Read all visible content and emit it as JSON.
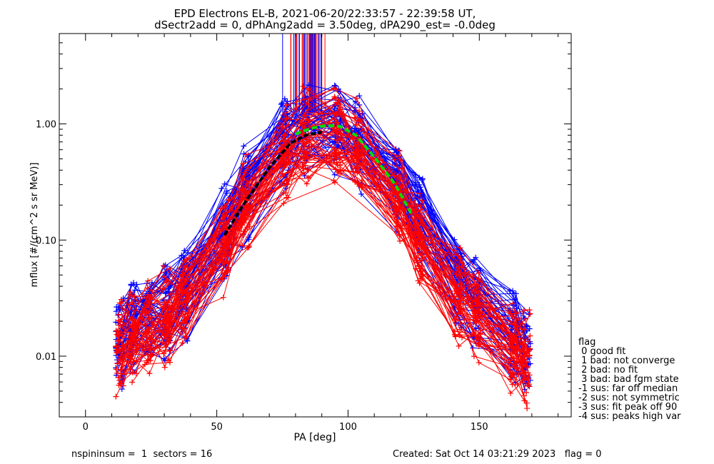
{
  "chart_data": {
    "type": "line",
    "title_line1": "EPD Electrons EL-B, 2021-06-20/22:33:57 - 22:39:58 UT,",
    "title_line2": "dSectr2add = 0, dPhAng2add = 3.50deg, dPA290_est=  -0.0deg",
    "xlabel": "PA [deg]",
    "ylabel": "mflux [#/(cm^2 s sr MeV)]",
    "xlim": [
      -10,
      185
    ],
    "ylim": [
      0.003,
      6.0
    ],
    "yscale": "log",
    "xticks": [
      0,
      50,
      100,
      150
    ],
    "xtick_labels": [
      "0",
      "50",
      "100",
      "150"
    ],
    "yticks": [
      0.01,
      0.1,
      1.0
    ],
    "ytick_labels": [
      "0.01",
      "0.10",
      "1.00"
    ],
    "pa_bins": [
      13,
      18,
      24,
      31,
      38,
      53,
      61,
      76,
      84,
      96,
      104,
      119,
      127,
      142,
      149,
      163,
      168
    ],
    "series": [
      {
        "name": "blue sweeps",
        "color": "#0000ff",
        "median": [
          0.012,
          0.016,
          0.02,
          0.025,
          0.035,
          0.11,
          0.25,
          0.72,
          0.85,
          0.92,
          0.68,
          0.3,
          0.15,
          0.04,
          0.028,
          0.014,
          0.01
        ]
      },
      {
        "name": "red sweeps",
        "color": "#ff0000",
        "median": [
          0.011,
          0.015,
          0.018,
          0.022,
          0.03,
          0.09,
          0.2,
          0.55,
          0.75,
          0.8,
          0.6,
          0.22,
          0.1,
          0.032,
          0.024,
          0.012,
          0.009
        ]
      }
    ],
    "median_curve": {
      "color": "#000000",
      "x": [
        53,
        60,
        70,
        78,
        84,
        90
      ],
      "y": [
        0.11,
        0.2,
        0.42,
        0.68,
        0.8,
        0.85
      ]
    },
    "fit_curve": {
      "color": "#00dd00",
      "x": [
        80,
        86,
        92,
        97,
        103,
        110,
        118,
        124
      ],
      "y": [
        0.82,
        0.92,
        0.97,
        0.95,
        0.8,
        0.52,
        0.3,
        0.17
      ]
    },
    "legend": {
      "title": "flag",
      "entries": [
        " 0 good fit",
        " 1 bad: not converge",
        " 2 bad: no fit",
        " 3 bad: bad fgm state",
        "-1 sus: far off median",
        "-2 sus: not symmetric",
        "-3 sus: fit peak off 90",
        "-4 sus: peaks high var"
      ],
      "placement": "bottom-right"
    },
    "footer_left": "nspininsum =  1  sectors = 16",
    "footer_right": "Created: Sat Oct 14 03:21:29 2023   flag = 0"
  }
}
